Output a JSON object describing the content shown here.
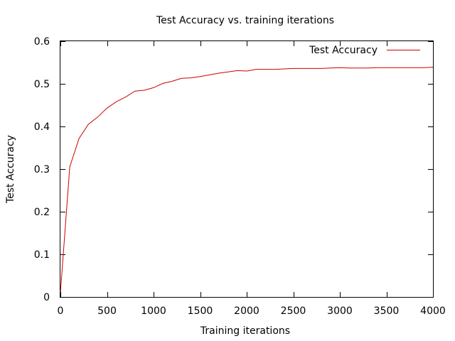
{
  "chart_data": {
    "type": "line",
    "title": "Test Accuracy vs. training iterations",
    "xlabel": "Training iterations",
    "ylabel": "Test Accuracy",
    "xlim": [
      0,
      4000
    ],
    "ylim": [
      0,
      0.6
    ],
    "xticks": [
      0,
      500,
      1000,
      1500,
      2000,
      2500,
      3000,
      3500,
      4000
    ],
    "yticks": [
      0,
      0.1,
      0.2,
      0.3,
      0.4,
      0.5,
      0.6
    ],
    "xtick_labels": [
      "0",
      "500",
      "1000",
      "1500",
      "2000",
      "2500",
      "3000",
      "3500",
      "4000"
    ],
    "ytick_labels": [
      "0",
      "0.1",
      "0.2",
      "0.3",
      "0.4",
      "0.5",
      "0.6"
    ],
    "grid": false,
    "legend_position": "top-right",
    "series": [
      {
        "name": "Test Accuracy",
        "color": "#cc0000",
        "x": [
          0,
          100,
          200,
          300,
          400,
          500,
          600,
          700,
          800,
          900,
          1000,
          1100,
          1200,
          1300,
          1400,
          1500,
          1600,
          1700,
          1800,
          1900,
          2000,
          2100,
          2200,
          2300,
          2400,
          2500,
          2600,
          2700,
          2800,
          2900,
          3000,
          3100,
          3200,
          3300,
          3400,
          3500,
          3600,
          3700,
          3800,
          3900,
          4000
        ],
        "y": [
          0.01,
          0.305,
          0.372,
          0.405,
          0.422,
          0.443,
          0.458,
          0.469,
          0.483,
          0.485,
          0.491,
          0.501,
          0.506,
          0.513,
          0.514,
          0.517,
          0.521,
          0.525,
          0.528,
          0.531,
          0.53,
          0.534,
          0.534,
          0.534,
          0.535,
          0.536,
          0.536,
          0.536,
          0.536,
          0.537,
          0.538,
          0.537,
          0.537,
          0.537,
          0.538,
          0.538,
          0.538,
          0.538,
          0.538,
          0.538,
          0.539
        ]
      }
    ]
  }
}
